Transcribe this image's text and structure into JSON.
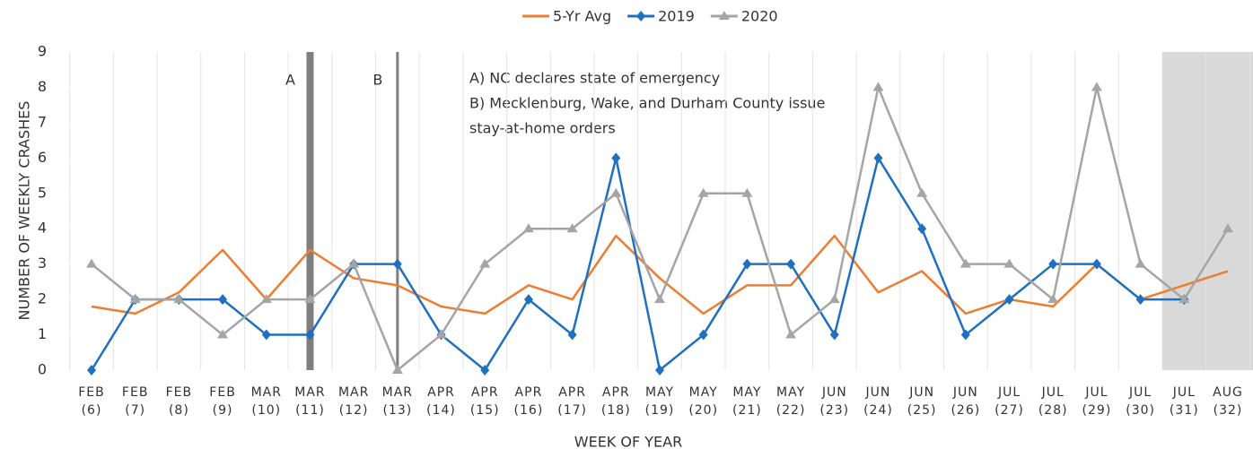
{
  "chart_data": {
    "type": "line",
    "xlabel": "WEEK OF YEAR",
    "ylabel": "NUMBER OF WEEKLY CRASHES",
    "categories": [
      "FEB (6)",
      "FEB (7)",
      "FEB (8)",
      "FEB (9)",
      "MAR (10)",
      "MAR (11)",
      "MAR (12)",
      "MAR (13)",
      "APR (14)",
      "APR (15)",
      "APR (16)",
      "APR (17)",
      "APR (18)",
      "MAY (19)",
      "MAY (20)",
      "MAY (21)",
      "MAY (22)",
      "JUN (23)",
      "JUN (24)",
      "JUN (25)",
      "JUN (26)",
      "JUL (27)",
      "JUL (28)",
      "JUL (29)",
      "JUL (30)",
      "JUL (31)",
      "AUG (32)"
    ],
    "series": [
      {
        "name": "5-Yr Avg",
        "color": "#ed7d31",
        "marker": "none",
        "values": [
          1.8,
          1.6,
          2.2,
          3.4,
          2.0,
          3.4,
          2.6,
          2.4,
          1.8,
          1.6,
          2.4,
          2.0,
          3.8,
          2.6,
          1.6,
          2.4,
          2.4,
          3.8,
          2.2,
          2.8,
          1.6,
          2.0,
          1.8,
          3.0,
          2.0,
          2.4,
          2.8
        ]
      },
      {
        "name": "2019",
        "color": "#1f70c1",
        "marker": "diamond",
        "values": [
          0,
          2,
          2,
          2,
          1,
          1,
          3,
          3,
          1,
          0,
          2,
          1,
          6,
          0,
          1,
          3,
          3,
          1,
          6,
          4,
          1,
          2,
          3,
          3,
          2,
          2,
          null
        ]
      },
      {
        "name": "2020",
        "color": "#a5a5a5",
        "marker": "triangle",
        "values": [
          3,
          2,
          2,
          1,
          2,
          2,
          3,
          0,
          1,
          3,
          4,
          4,
          5,
          2,
          5,
          5,
          1,
          2,
          8,
          5,
          3,
          3,
          2,
          8,
          3,
          2,
          4
        ]
      }
    ],
    "ylim": [
      0,
      9
    ],
    "yticks": [
      0,
      1,
      2,
      3,
      4,
      5,
      6,
      7,
      8,
      9
    ],
    "grid": "vertical",
    "legend": "top",
    "annotations": [
      {
        "label": "A",
        "x": "MAR (11)"
      },
      {
        "label": "B",
        "x": "MAR (13)"
      }
    ],
    "notes": [
      "A) NC declares state of emergency",
      "B) Mecklenburg, Wake, and Durham County issue",
      "stay-at-home orders"
    ]
  }
}
